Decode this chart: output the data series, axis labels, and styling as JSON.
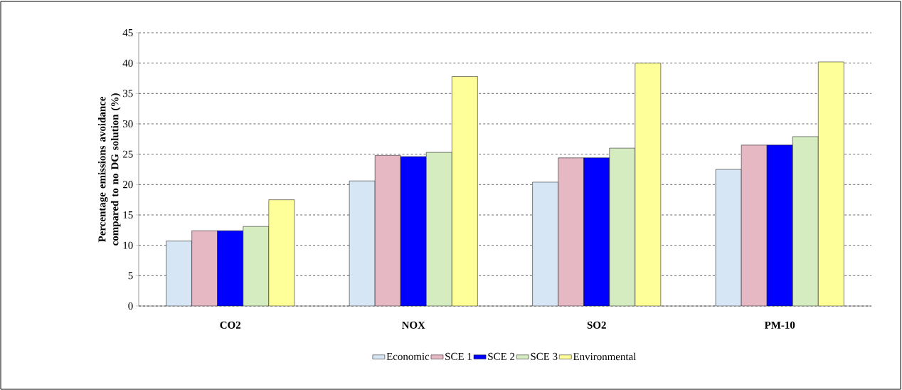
{
  "chart_data": {
    "type": "bar",
    "ylabel": "Percentage emissions avoidance compared to no DG solution (%)",
    "categories": [
      "CO2",
      "NOX",
      "SO2",
      "PM-10"
    ],
    "series": [
      {
        "name": "Economic",
        "color": "#d6e6f4",
        "values": [
          10.7,
          20.6,
          20.4,
          22.5
        ]
      },
      {
        "name": "SCE 1",
        "color": "#e6b8c4",
        "values": [
          12.4,
          24.8,
          24.4,
          26.5
        ]
      },
      {
        "name": "SCE 2",
        "color": "#0000ff",
        "values": [
          12.4,
          24.6,
          24.4,
          26.5
        ]
      },
      {
        "name": "SCE 3",
        "color": "#d4ecc0",
        "values": [
          13.1,
          25.3,
          26.0,
          27.9
        ]
      },
      {
        "name": "Environmental",
        "color": "#ffff99",
        "values": [
          17.5,
          37.8,
          40.0,
          40.2
        ]
      }
    ],
    "ylim": [
      0,
      45
    ],
    "yticks": [
      0,
      5,
      10,
      15,
      20,
      25,
      30,
      35,
      40,
      45
    ],
    "grid": "y",
    "legend": "bottom"
  }
}
